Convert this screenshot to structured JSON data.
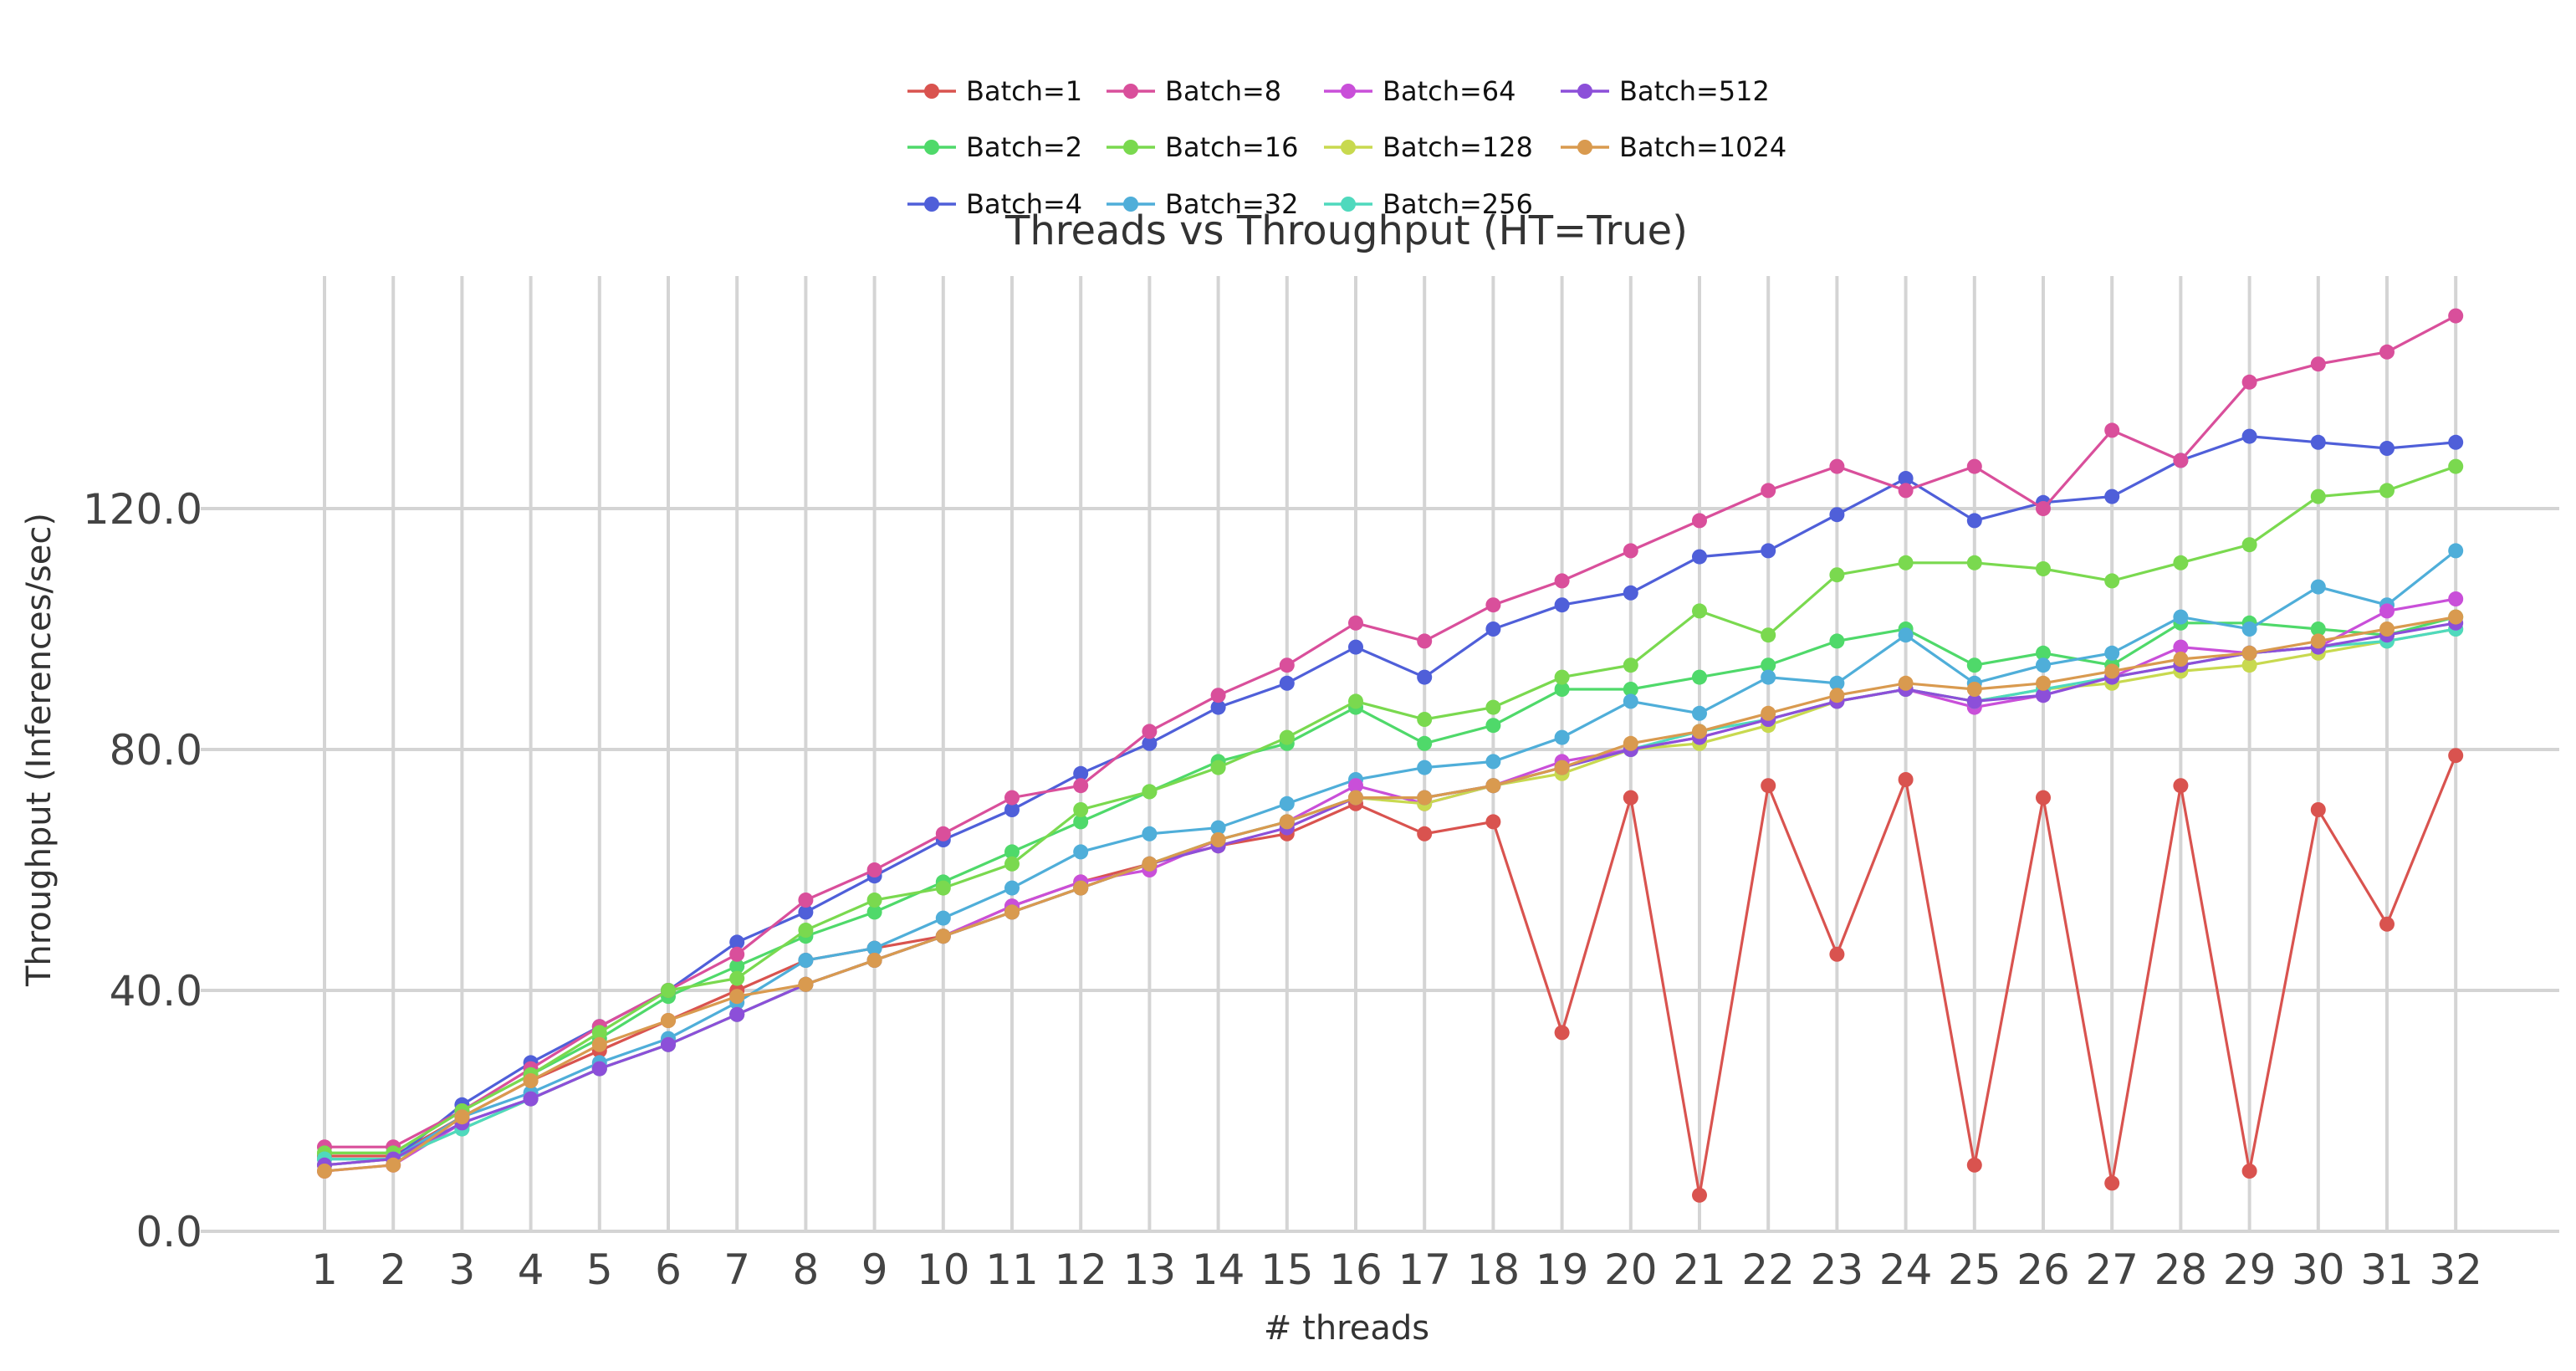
{
  "chart_data": {
    "type": "line",
    "title": "Threads vs Throughput (HT=True)",
    "xlabel": "# threads",
    "ylabel": "Throughput (Inferences/sec)",
    "x": [
      1,
      2,
      3,
      4,
      5,
      6,
      7,
      8,
      9,
      10,
      11,
      12,
      13,
      14,
      15,
      16,
      17,
      18,
      19,
      20,
      21,
      22,
      23,
      24,
      25,
      26,
      27,
      28,
      29,
      30,
      31,
      32
    ],
    "y_ticks": [
      "0.0",
      "40.0",
      "80.0",
      "120.0"
    ],
    "y_tick_values": [
      0,
      40,
      80,
      120
    ],
    "ylim": [
      0,
      160
    ],
    "grid": "vertical lines at every x tick, horizontal lines at y ticks",
    "legend_position": "top-center",
    "series": [
      {
        "name": "Batch=1",
        "color": "#d9534f",
        "values": [
          12.5,
          12.5,
          19,
          25,
          30,
          35,
          40,
          45,
          47,
          49,
          54,
          58,
          61,
          64,
          66,
          71,
          66,
          68,
          33,
          72,
          6,
          74,
          46,
          75,
          11,
          72,
          8,
          74,
          10,
          70,
          51,
          79
        ]
      },
      {
        "name": "Batch=2",
        "color": "#4fd96a",
        "values": [
          13,
          13,
          20,
          26,
          32,
          39,
          44,
          49,
          53,
          58,
          63,
          68,
          73,
          78,
          81,
          87,
          81,
          84,
          90,
          90,
          92,
          94,
          98,
          100,
          94,
          96,
          94,
          101,
          101,
          100,
          99,
          102
        ]
      },
      {
        "name": "Batch=4",
        "color": "#4f5fd9",
        "values": [
          11,
          12,
          21,
          28,
          34,
          40,
          48,
          53,
          59,
          65,
          70,
          76,
          81,
          87,
          91,
          97,
          92,
          100,
          104,
          106,
          112,
          113,
          119,
          125,
          118,
          121,
          122,
          128,
          132,
          131,
          130,
          131
        ]
      },
      {
        "name": "Batch=8",
        "color": "#d94f9b",
        "values": [
          14,
          14,
          20,
          27,
          34,
          40,
          46,
          55,
          60,
          66,
          72,
          74,
          83,
          89,
          94,
          101,
          98,
          104,
          108,
          113,
          118,
          123,
          127,
          123,
          127,
          120,
          133,
          128,
          141,
          144,
          146,
          152
        ]
      },
      {
        "name": "Batch=16",
        "color": "#7ad94f",
        "values": [
          13,
          13,
          20,
          26,
          33,
          40,
          42,
          50,
          55,
          57,
          61,
          70,
          73,
          77,
          82,
          88,
          85,
          87,
          92,
          94,
          103,
          99,
          109,
          111,
          111,
          110,
          108,
          111,
          114,
          122,
          123,
          127
        ]
      },
      {
        "name": "Batch=32",
        "color": "#4faed9",
        "values": [
          12,
          12,
          19,
          23,
          28,
          32,
          38,
          45,
          47,
          52,
          57,
          63,
          66,
          67,
          71,
          75,
          77,
          78,
          82,
          88,
          86,
          92,
          91,
          99,
          91,
          94,
          96,
          102,
          100,
          107,
          104,
          113
        ]
      },
      {
        "name": "Batch=64",
        "color": "#c94fd9",
        "values": [
          10,
          11,
          18,
          22,
          27,
          31,
          36,
          41,
          45,
          49,
          54,
          58,
          60,
          65,
          68,
          74,
          71,
          74,
          78,
          80,
          82,
          85,
          88,
          90,
          87,
          89,
          92,
          97,
          96,
          97,
          103,
          105
        ]
      },
      {
        "name": "Batch=128",
        "color": "#c8d94f",
        "values": [
          11,
          12,
          17,
          22,
          27,
          31,
          36,
          41,
          45,
          49,
          53,
          57,
          61,
          65,
          68,
          72,
          71,
          74,
          76,
          80,
          81,
          84,
          88,
          90,
          88,
          90,
          91,
          93,
          94,
          96,
          98,
          100
        ]
      },
      {
        "name": "Batch=256",
        "color": "#4fd9bd",
        "values": [
          12,
          12,
          17,
          22,
          27,
          31,
          36,
          41,
          45,
          49,
          53,
          57,
          61,
          65,
          68,
          72,
          72,
          74,
          77,
          80,
          83,
          85,
          88,
          90,
          88,
          90,
          92,
          94,
          96,
          97,
          98,
          100
        ]
      },
      {
        "name": "Batch=512",
        "color": "#8c4fd9",
        "values": [
          11,
          12,
          18,
          22,
          27,
          31,
          36,
          41,
          45,
          49,
          53,
          57,
          61,
          64,
          67,
          72,
          72,
          74,
          77,
          80,
          82,
          85,
          88,
          90,
          88,
          89,
          92,
          94,
          96,
          97,
          99,
          101
        ]
      },
      {
        "name": "Batch=1024",
        "color": "#d99a4f",
        "values": [
          10,
          11,
          19,
          25,
          31,
          35,
          39,
          41,
          45,
          49,
          53,
          57,
          61,
          65,
          68,
          72,
          72,
          74,
          77,
          81,
          83,
          86,
          89,
          91,
          90,
          91,
          93,
          95,
          96,
          98,
          100,
          102
        ]
      }
    ]
  }
}
